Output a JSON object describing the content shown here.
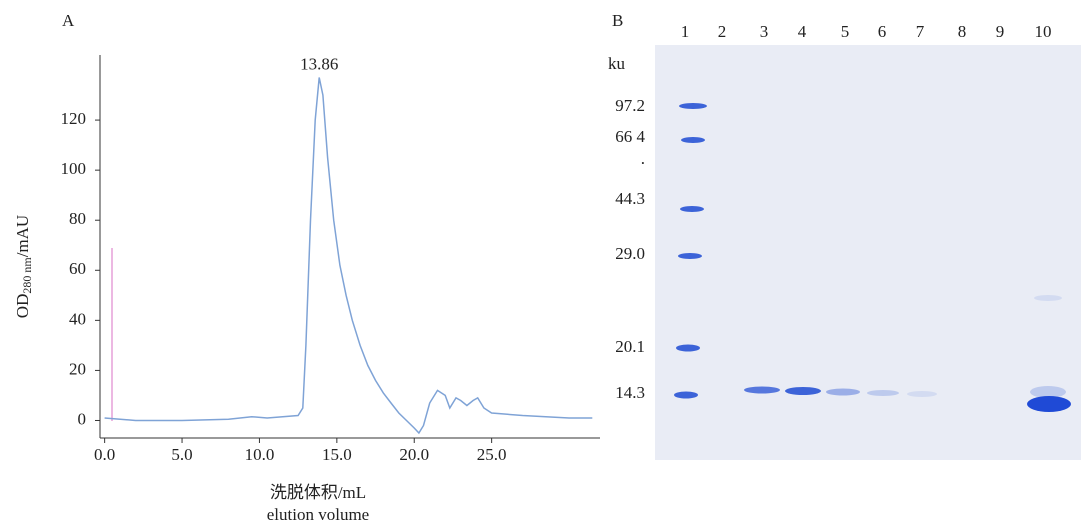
{
  "panel_a": {
    "label": "A",
    "chart_data": {
      "type": "line",
      "annotation": "13.86",
      "y_label": {
        "main": "OD",
        "sub": "280 nm",
        "unit": "/mAU"
      },
      "x_label": [
        "洗脱体积/mL",
        "elution volume"
      ],
      "series": [
        {
          "color": "#7fa3d6",
          "x": [
            0,
            2,
            5,
            8,
            9.5,
            10.5,
            12.5,
            12.8,
            13.0,
            13.3,
            13.6,
            13.86,
            14.1,
            14.4,
            14.8,
            15.2,
            15.6,
            16,
            16.5,
            17,
            17.5,
            18,
            18.5,
            19,
            19.5,
            20,
            20.3,
            20.6,
            21,
            21.5,
            22,
            22.3,
            22.7,
            23,
            23.4,
            23.8,
            24.1,
            24.5,
            25,
            27,
            30,
            31.5
          ],
          "values": [
            1,
            0,
            0,
            0.5,
            1.5,
            1,
            2,
            5,
            30,
            80,
            120,
            137,
            130,
            105,
            80,
            62,
            50,
            40,
            30,
            22,
            16,
            11,
            7,
            3,
            0,
            -3,
            -5,
            -2,
            7,
            12,
            10,
            5,
            9,
            8,
            6,
            8,
            9,
            5,
            3,
            2,
            1,
            1
          ]
        }
      ],
      "xlim": [
        -0.3,
        32
      ],
      "ylim": [
        -7,
        146
      ],
      "xticks": [
        {
          "value": 0,
          "label": "0.0"
        },
        {
          "value": 5,
          "label": "5.0"
        },
        {
          "value": 10,
          "label": "10.0"
        },
        {
          "value": 15,
          "label": "15.0"
        },
        {
          "value": 20,
          "label": "20.0"
        },
        {
          "value": 25,
          "label": "25.0"
        }
      ],
      "yticks": [
        0,
        20,
        40,
        60,
        80,
        100,
        120
      ],
      "grid": false
    }
  },
  "panel_b": {
    "label": "B",
    "lanes": [
      "1",
      "2",
      "3",
      "4",
      "5",
      "6",
      "7",
      "8",
      "9",
      "10"
    ],
    "marker_unit": "ku",
    "marker_labels": [
      "97.2",
      "66 4",
      ".",
      "44.3",
      "29.0",
      "20.1",
      "14.3"
    ]
  }
}
